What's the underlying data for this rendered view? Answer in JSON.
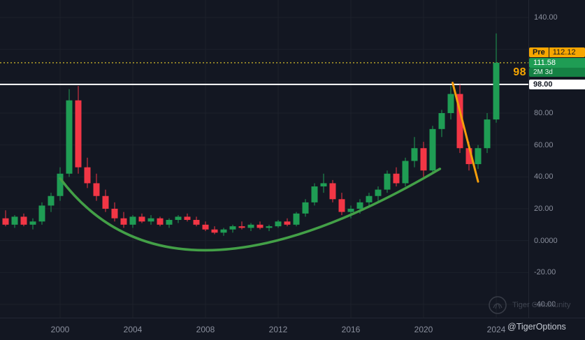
{
  "chart_data": {
    "type": "candlestick",
    "title": "",
    "x_axis": {
      "ticks": [
        {
          "label": "2000",
          "year": 2000
        },
        {
          "label": "2004",
          "year": 2004
        },
        {
          "label": "2008",
          "year": 2008
        },
        {
          "label": "2012",
          "year": 2012
        },
        {
          "label": "2016",
          "year": 2016
        },
        {
          "label": "2020",
          "year": 2020
        },
        {
          "label": "2024",
          "year": 2024
        }
      ],
      "tick_years": [
        2000,
        2004,
        2008,
        2012,
        2016,
        2020,
        2024
      ]
    },
    "y_axis": {
      "position": "right",
      "range": [
        -45,
        145
      ],
      "ticks": [
        {
          "label": "140.00",
          "price": 140
        },
        {
          "label": "80.00",
          "price": 80
        },
        {
          "label": "60.00",
          "price": 60
        },
        {
          "label": "40.00",
          "price": 40
        },
        {
          "label": "20.00",
          "price": 20
        },
        {
          "label": "0.0000",
          "price": 0
        },
        {
          "label": "-20.00",
          "price": -20
        },
        {
          "label": "-40.00",
          "price": -40
        }
      ],
      "gridline_prices": [
        140,
        120,
        100,
        80,
        60,
        40,
        20,
        0,
        -20,
        -40
      ]
    },
    "colors": {
      "up": "#1f9d54",
      "down": "#f23645",
      "grid": "#1c212b",
      "curve": "#43a047",
      "trendline": "#f59e0b",
      "level_line": "#ffffff",
      "price_line": "#b5a129"
    },
    "candles": [
      {
        "t": 1997.0,
        "o": 14,
        "h": 19,
        "l": 9,
        "c": 10
      },
      {
        "t": 1997.5,
        "o": 10,
        "h": 16,
        "l": 8,
        "c": 15
      },
      {
        "t": 1998.0,
        "o": 15,
        "h": 17,
        "l": 9,
        "c": 10
      },
      {
        "t": 1998.5,
        "o": 10,
        "h": 14,
        "l": 7,
        "c": 12
      },
      {
        "t": 1999.0,
        "o": 12,
        "h": 24,
        "l": 10,
        "c": 22
      },
      {
        "t": 1999.5,
        "o": 22,
        "h": 30,
        "l": 18,
        "c": 28
      },
      {
        "t": 2000.0,
        "o": 28,
        "h": 46,
        "l": 25,
        "c": 42
      },
      {
        "t": 2000.5,
        "o": 42,
        "h": 95,
        "l": 40,
        "c": 88
      },
      {
        "t": 2001.0,
        "o": 88,
        "h": 97,
        "l": 42,
        "c": 46
      },
      {
        "t": 2001.5,
        "o": 46,
        "h": 52,
        "l": 33,
        "c": 36
      },
      {
        "t": 2002.0,
        "o": 36,
        "h": 42,
        "l": 25,
        "c": 28
      },
      {
        "t": 2002.5,
        "o": 28,
        "h": 32,
        "l": 18,
        "c": 20
      },
      {
        "t": 2003.0,
        "o": 20,
        "h": 24,
        "l": 12,
        "c": 14
      },
      {
        "t": 2003.5,
        "o": 14,
        "h": 18,
        "l": 8,
        "c": 10
      },
      {
        "t": 2004.0,
        "o": 10,
        "h": 16,
        "l": 8,
        "c": 15
      },
      {
        "t": 2004.5,
        "o": 15,
        "h": 17,
        "l": 11,
        "c": 12
      },
      {
        "t": 2005.0,
        "o": 12,
        "h": 16,
        "l": 10,
        "c": 14
      },
      {
        "t": 2005.5,
        "o": 14,
        "h": 15,
        "l": 9,
        "c": 10
      },
      {
        "t": 2006.0,
        "o": 10,
        "h": 14,
        "l": 8,
        "c": 13
      },
      {
        "t": 2006.5,
        "o": 13,
        "h": 16,
        "l": 11,
        "c": 15
      },
      {
        "t": 2007.0,
        "o": 15,
        "h": 17,
        "l": 12,
        "c": 13
      },
      {
        "t": 2007.5,
        "o": 13,
        "h": 15,
        "l": 9,
        "c": 10
      },
      {
        "t": 2008.0,
        "o": 10,
        "h": 12,
        "l": 6,
        "c": 7
      },
      {
        "t": 2008.5,
        "o": 7,
        "h": 9,
        "l": 4,
        "c": 5
      },
      {
        "t": 2009.0,
        "o": 5,
        "h": 8,
        "l": 3,
        "c": 7
      },
      {
        "t": 2009.5,
        "o": 7,
        "h": 10,
        "l": 5,
        "c": 9
      },
      {
        "t": 2010.0,
        "o": 9,
        "h": 12,
        "l": 7,
        "c": 8
      },
      {
        "t": 2010.5,
        "o": 8,
        "h": 11,
        "l": 6,
        "c": 10
      },
      {
        "t": 2011.0,
        "o": 10,
        "h": 12,
        "l": 7,
        "c": 8
      },
      {
        "t": 2011.5,
        "o": 8,
        "h": 10,
        "l": 6,
        "c": 9
      },
      {
        "t": 2012.0,
        "o": 9,
        "h": 13,
        "l": 8,
        "c": 12
      },
      {
        "t": 2012.5,
        "o": 12,
        "h": 14,
        "l": 9,
        "c": 10
      },
      {
        "t": 2013.0,
        "o": 10,
        "h": 18,
        "l": 9,
        "c": 17
      },
      {
        "t": 2013.5,
        "o": 17,
        "h": 26,
        "l": 15,
        "c": 24
      },
      {
        "t": 2014.0,
        "o": 24,
        "h": 36,
        "l": 22,
        "c": 34
      },
      {
        "t": 2014.5,
        "o": 34,
        "h": 42,
        "l": 30,
        "c": 36
      },
      {
        "t": 2015.0,
        "o": 36,
        "h": 38,
        "l": 24,
        "c": 26
      },
      {
        "t": 2015.5,
        "o": 26,
        "h": 30,
        "l": 16,
        "c": 18
      },
      {
        "t": 2016.0,
        "o": 18,
        "h": 22,
        "l": 14,
        "c": 20
      },
      {
        "t": 2016.5,
        "o": 20,
        "h": 26,
        "l": 17,
        "c": 24
      },
      {
        "t": 2017.0,
        "o": 24,
        "h": 30,
        "l": 21,
        "c": 28
      },
      {
        "t": 2017.5,
        "o": 28,
        "h": 34,
        "l": 25,
        "c": 32
      },
      {
        "t": 2018.0,
        "o": 32,
        "h": 44,
        "l": 30,
        "c": 42
      },
      {
        "t": 2018.5,
        "o": 42,
        "h": 46,
        "l": 34,
        "c": 36
      },
      {
        "t": 2019.0,
        "o": 36,
        "h": 52,
        "l": 34,
        "c": 50
      },
      {
        "t": 2019.5,
        "o": 50,
        "h": 65,
        "l": 46,
        "c": 58
      },
      {
        "t": 2020.0,
        "o": 58,
        "h": 62,
        "l": 40,
        "c": 44
      },
      {
        "t": 2020.5,
        "o": 44,
        "h": 72,
        "l": 42,
        "c": 70
      },
      {
        "t": 2021.0,
        "o": 70,
        "h": 82,
        "l": 65,
        "c": 80
      },
      {
        "t": 2021.5,
        "o": 80,
        "h": 97,
        "l": 76,
        "c": 92
      },
      {
        "t": 2022.0,
        "o": 92,
        "h": 98,
        "l": 55,
        "c": 58
      },
      {
        "t": 2022.5,
        "o": 58,
        "h": 62,
        "l": 44,
        "c": 48
      },
      {
        "t": 2023.0,
        "o": 48,
        "h": 60,
        "l": 45,
        "c": 58
      },
      {
        "t": 2023.5,
        "o": 58,
        "h": 80,
        "l": 55,
        "c": 76
      },
      {
        "t": 2024.0,
        "o": 76,
        "h": 130,
        "l": 74,
        "c": 111.58
      }
    ],
    "annotations": {
      "horizontal_level": {
        "price": 98,
        "callout_label": "98",
        "axis_label": "98.00",
        "color": "#ffffff"
      },
      "current_price_line": {
        "price": 111.58,
        "style": "dotted",
        "color": "#b5a129"
      },
      "rounding_curve_points": [
        [
          2000.0,
          39
        ],
        [
          2008.3,
          -6
        ],
        [
          2020.9,
          45
        ]
      ],
      "trendline_points": [
        [
          2021.6,
          99
        ],
        [
          2023.0,
          37
        ]
      ]
    },
    "legend_position": "none",
    "grid": true
  },
  "price_axis": {
    "pre_badge": {
      "label": "Pre",
      "value": "112.12",
      "color": "#f7a600"
    },
    "last_badge": {
      "value": "111.58",
      "countdown": "2M 3d",
      "color": "#1f9d54"
    },
    "level_badge": {
      "value": "98.00",
      "color": "#ffffff"
    },
    "level_callout": "98"
  },
  "watermark": {
    "community": "Tiger Community",
    "handle": "@TigerOptions"
  }
}
